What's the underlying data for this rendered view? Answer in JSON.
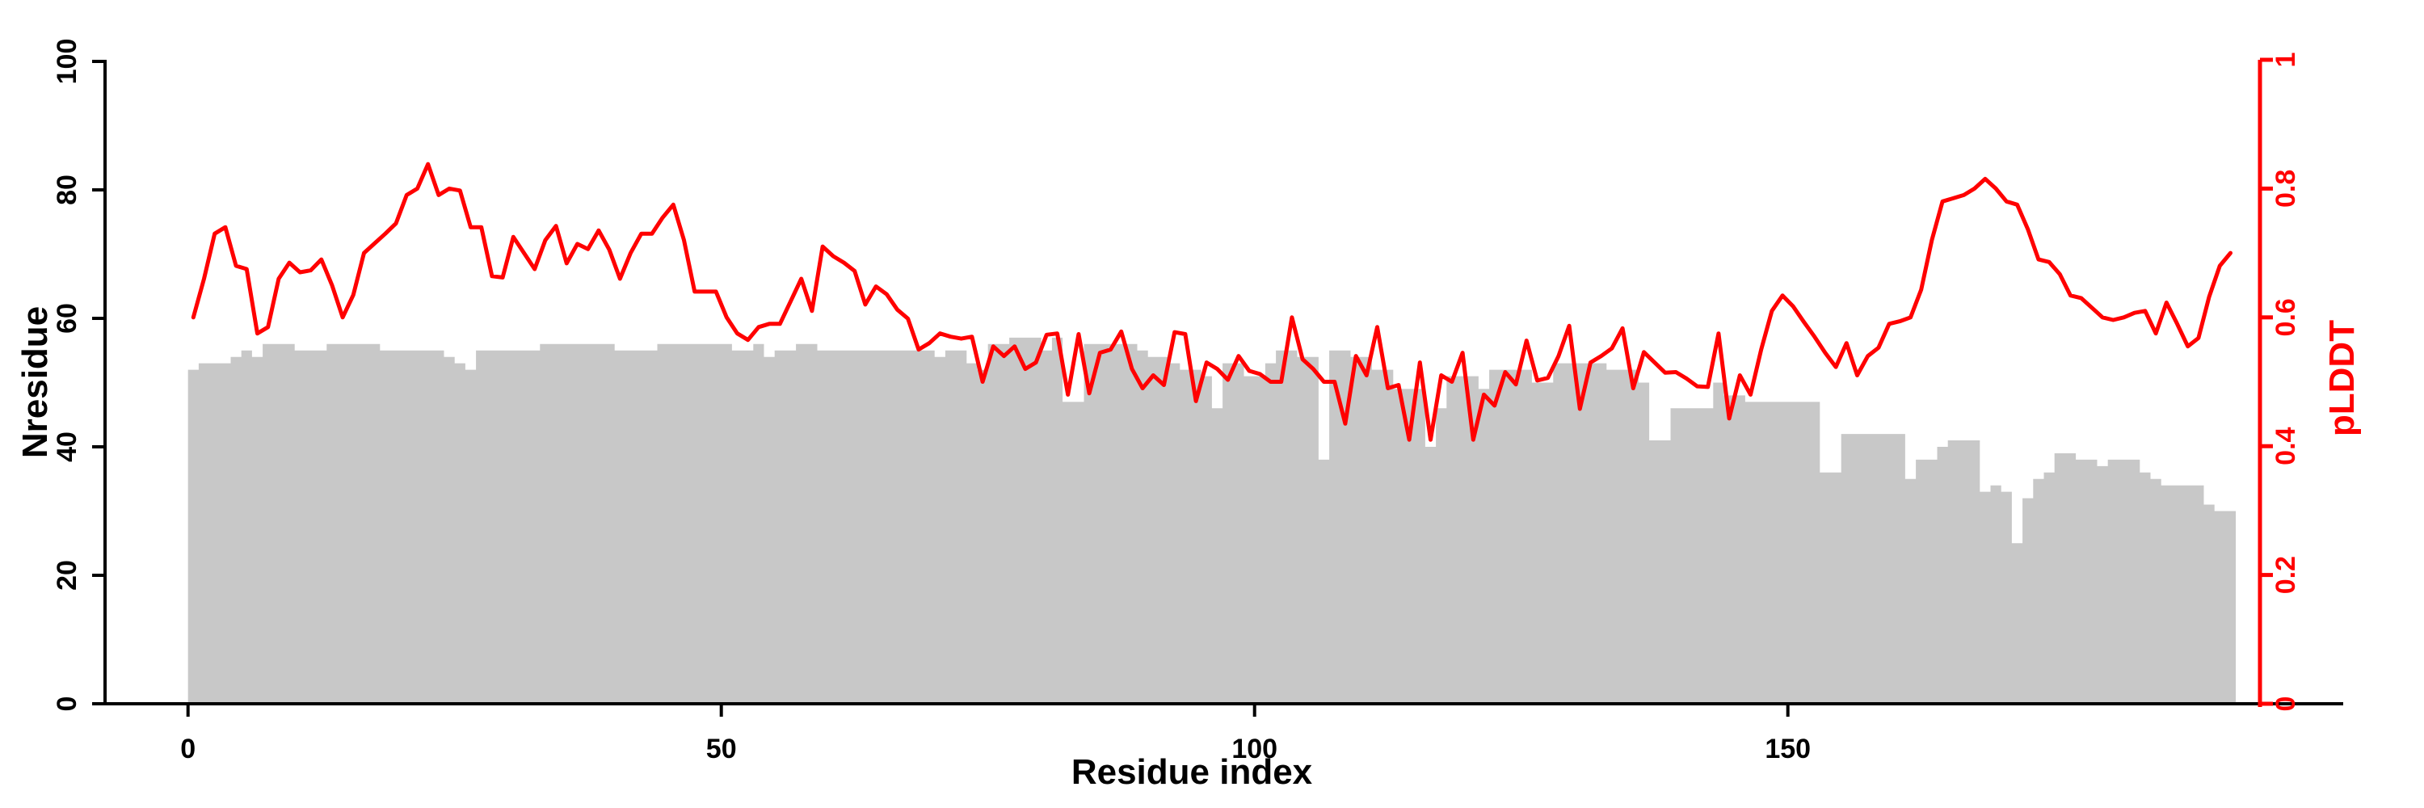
{
  "chart_data": {
    "type": "bar+line (dual y-axis)",
    "title": "",
    "xlabel": "Residue index",
    "ylabel_left": "Nresidue",
    "ylabel_right": "pLDDT",
    "x_ticks": [
      0,
      50,
      100,
      150
    ],
    "y_ticks_left": [
      0,
      20,
      40,
      60,
      80,
      100
    ],
    "y_tick_labels_right": [
      "0",
      "0.2",
      "0.4",
      "0.6",
      "0.8",
      "1"
    ],
    "y_ticks_right": [
      0,
      0.2,
      0.4,
      0.6,
      0.8,
      1
    ],
    "ylim_left": [
      0,
      100
    ],
    "ylim_right": [
      0,
      1
    ],
    "xlim": [
      0,
      192
    ],
    "n_residues": 192,
    "grid": "off",
    "legend": "none",
    "bar_color": "#c8c8c8",
    "line_color": "#ff0000",
    "axis_color": "#000000",
    "series": [
      {
        "name": "Nresidue",
        "type": "bar",
        "axis": "left",
        "values": [
          52,
          53,
          53,
          53,
          54,
          55,
          54,
          56,
          56,
          56,
          55,
          55,
          55,
          56,
          56,
          56,
          56,
          56,
          55,
          55,
          55,
          55,
          55,
          55,
          54,
          53,
          52,
          55,
          55,
          55,
          55,
          55,
          55,
          56,
          56,
          56,
          56,
          56,
          56,
          56,
          55,
          55,
          55,
          55,
          56,
          56,
          56,
          56,
          56,
          56,
          56,
          55,
          55,
          56,
          54,
          55,
          55,
          56,
          56,
          55,
          55,
          55,
          55,
          55,
          55,
          55,
          55,
          55,
          55,
          55,
          54,
          55,
          55,
          53,
          52,
          56,
          56,
          57,
          57,
          57,
          55,
          57,
          47,
          47,
          56,
          56,
          56,
          56,
          56,
          55,
          54,
          54,
          53,
          52,
          52,
          51,
          46,
          53,
          53,
          51,
          51,
          53,
          55,
          55,
          54,
          54,
          38,
          55,
          55,
          54,
          54,
          52,
          52,
          49,
          49,
          49,
          40,
          46,
          51,
          51,
          51,
          49,
          52,
          52,
          52,
          52,
          50,
          50,
          53,
          53,
          53,
          53,
          53,
          52,
          52,
          52,
          50,
          41,
          41,
          46,
          46,
          46,
          46,
          50,
          48,
          48,
          47,
          47,
          47,
          47,
          47,
          47,
          47,
          36,
          36,
          42,
          42,
          42,
          42,
          42,
          42,
          35,
          38,
          38,
          40,
          41,
          41,
          41,
          33,
          34,
          33,
          25,
          32,
          35,
          36,
          39,
          39,
          38,
          38,
          37,
          38,
          38,
          38,
          36,
          35,
          34,
          34,
          34,
          34,
          31,
          30,
          30
        ]
      },
      {
        "name": "pLDDT",
        "type": "line",
        "axis": "right",
        "values": [
          0.6,
          0.66,
          0.73,
          0.74,
          0.68,
          0.675,
          0.575,
          0.585,
          0.66,
          0.685,
          0.67,
          0.673,
          0.69,
          0.65,
          0.6,
          0.635,
          0.7,
          0.715,
          0.73,
          0.746,
          0.79,
          0.8,
          0.838,
          0.79,
          0.8,
          0.797,
          0.74,
          0.74,
          0.664,
          0.662,
          0.725,
          0.7,
          0.675,
          0.72,
          0.742,
          0.684,
          0.714,
          0.706,
          0.735,
          0.705,
          0.66,
          0.7,
          0.73,
          0.73,
          0.755,
          0.775,
          0.72,
          0.64,
          0.64,
          0.64,
          0.6,
          0.575,
          0.565,
          0.585,
          0.59,
          0.59,
          0.625,
          0.66,
          0.61,
          0.71,
          0.695,
          0.685,
          0.672,
          0.62,
          0.648,
          0.636,
          0.612,
          0.598,
          0.55,
          0.56,
          0.575,
          0.57,
          0.567,
          0.57,
          0.5,
          0.555,
          0.54,
          0.555,
          0.52,
          0.53,
          0.573,
          0.575,
          0.48,
          0.574,
          0.482,
          0.545,
          0.55,
          0.578,
          0.52,
          0.49,
          0.51,
          0.495,
          0.577,
          0.574,
          0.47,
          0.53,
          0.52,
          0.503,
          0.54,
          0.517,
          0.512,
          0.5,
          0.5,
          0.6,
          0.535,
          0.52,
          0.5,
          0.5,
          0.435,
          0.54,
          0.51,
          0.585,
          0.49,
          0.495,
          0.41,
          0.53,
          0.41,
          0.51,
          0.5,
          0.545,
          0.41,
          0.48,
          0.463,
          0.515,
          0.496,
          0.564,
          0.502,
          0.506,
          0.54,
          0.587,
          0.458,
          0.53,
          0.54,
          0.552,
          0.583,
          0.49,
          0.546,
          0.53,
          0.514,
          0.515,
          0.505,
          0.493,
          0.492,
          0.575,
          0.443,
          0.51,
          0.48,
          0.55,
          0.61,
          0.634,
          0.617,
          0.593,
          0.57,
          0.545,
          0.523,
          0.56,
          0.51,
          0.54,
          0.553,
          0.59,
          0.594,
          0.6,
          0.643,
          0.72,
          0.78,
          0.785,
          0.79,
          0.8,
          0.815,
          0.8,
          0.78,
          0.775,
          0.737,
          0.69,
          0.686,
          0.667,
          0.634,
          0.63,
          0.615,
          0.6,
          0.596,
          0.6,
          0.607,
          0.61,
          0.575,
          0.623,
          0.59,
          0.555,
          0.568,
          0.632,
          0.68,
          0.7
        ]
      }
    ]
  }
}
